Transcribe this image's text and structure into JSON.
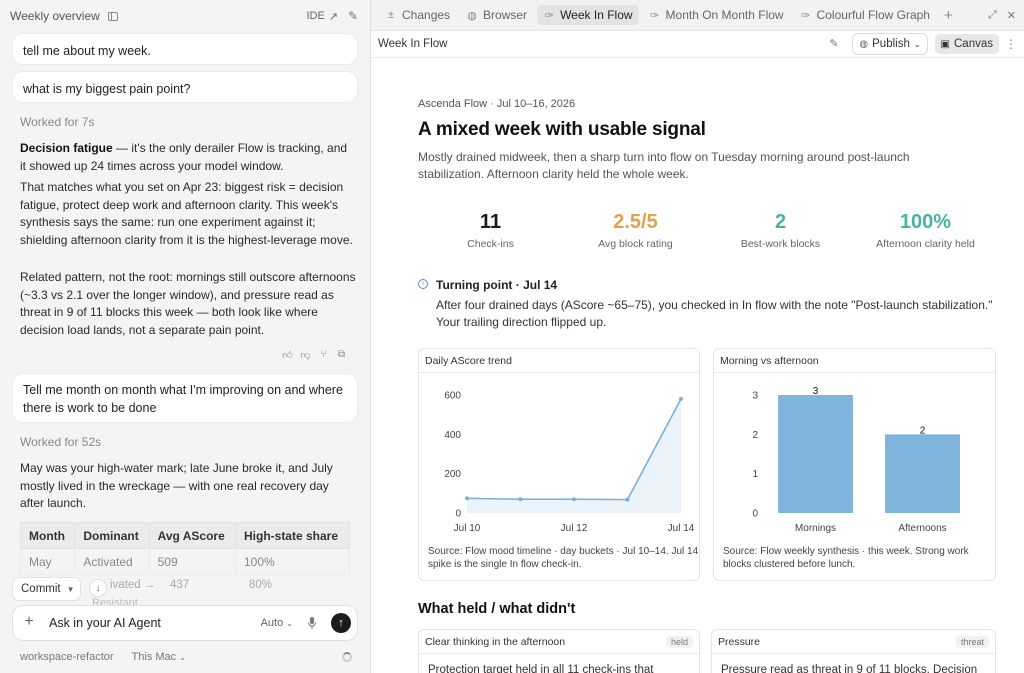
{
  "left": {
    "title": "Weekly overview",
    "ide_label": "IDE",
    "messages": [
      {
        "text": "tell me about my week."
      },
      {
        "text": "what is my biggest pain point?"
      },
      {
        "text": "Tell me month on month what I'm improving on and where there is work to be done"
      }
    ],
    "worked1": "Worked for 7s",
    "answer1": {
      "p1_bold": "Decision fatigue",
      "p1_rest": " — it's the only derailer Flow is tracking, and it showed up 24 times across your model window.",
      "p2": "That matches what you set on Apr 23: biggest risk = decision fatigue, protect deep work and afternoon clarity. This week's synthesis says the same: run one experiment against it; shielding afternoon clarity from it is the highest-leverage move.",
      "p3": "Related pattern, not the root: mornings still outscore afternoons (~3.3 vs 2.1 over the longer window), and pressure read as threat in 9 of 11 blocks this week — both look like where decision load lands, not a separate pain point."
    },
    "worked2": "Worked for 52s",
    "answer2": "May was your high-water mark; late June broke it, and July mostly lived in the wreckage — with one real recovery day after launch.",
    "table": {
      "headers": [
        "Month",
        "Dominant",
        "Avg AScore",
        "High-state share"
      ],
      "rows": [
        [
          "May",
          "Activated",
          "509",
          "100%"
        ],
        [
          "",
          "ivated →",
          "437",
          "80%"
        ]
      ]
    },
    "ghost_resist": "Resistant",
    "commit_label": "Commit",
    "composer": {
      "value": "Ask in your AI Agent",
      "mode": "Auto"
    },
    "footer": {
      "branch": "workspace-refactor",
      "machine": "This Mac"
    }
  },
  "tabs": [
    {
      "label": "Changes",
      "icon": "plus-minus-icon",
      "active": false
    },
    {
      "label": "Browser",
      "icon": "globe-icon",
      "active": false
    },
    {
      "label": "Week In Flow",
      "icon": "flow-icon",
      "active": true
    },
    {
      "label": "Month On Month Flow",
      "icon": "flow-icon",
      "active": false
    },
    {
      "label": "Colourful Flow Graph",
      "icon": "flow-icon",
      "active": false
    }
  ],
  "toolbar": {
    "title": "Week In Flow",
    "publish": "Publish",
    "canvas": "Canvas"
  },
  "doc": {
    "eyebrow": "Ascenda Flow · Jul 10–16, 2026",
    "title": "A mixed week with usable signal",
    "subtitle": "Mostly drained midweek, then a sharp turn into flow on Tuesday morning around post-launch stabilization. Afternoon clarity held the whole week.",
    "stats": [
      {
        "value": "11",
        "label": "Check-ins",
        "color": "#1a1a1a"
      },
      {
        "value": "2.5/5",
        "label": "Avg block rating",
        "color": "#e0a24a"
      },
      {
        "value": "2",
        "label": "Best-work blocks",
        "color": "#4ab3a0"
      },
      {
        "value": "100%",
        "label": "Afternoon clarity held",
        "color": "#4ab3a0"
      }
    ],
    "turning": {
      "title": "Turning point · Jul 14",
      "body": "After four drained days (AScore ~65–75), you checked in In flow with the note \"Post-launch stabilization.\" Your trailing direction flipped up."
    },
    "chart1_title": "Daily AScore trend",
    "chart1_source": "Source: Flow mood timeline · day buckets · Jul 10–14. Jul 14 spike is the single In flow check-in.",
    "chart2_title": "Morning vs afternoon",
    "chart2_source": "Source: Flow weekly synthesis · this week. Strong work blocks clustered before lunch.",
    "section2": "What held / what didn't",
    "held_card": {
      "title": "Clear thinking in the afternoon",
      "tag": "held",
      "body": "Protection target held in all 11 check-ins that"
    },
    "threat_card": {
      "title": "Pressure",
      "tag": "threat",
      "body": "Pressure read as threat in 9 of 11 blocks. Decision"
    }
  },
  "chart_data": [
    {
      "type": "line",
      "title": "Daily AScore trend",
      "x": [
        "Jul 10",
        "Jul 11",
        "Jul 12",
        "Jul 13",
        "Jul 14"
      ],
      "x_tick_labels": [
        "Jul 10",
        "Jul 12",
        "Jul 14"
      ],
      "values": [
        75,
        70,
        70,
        68,
        580
      ],
      "ylim": [
        0,
        600
      ],
      "yticks": [
        0,
        200,
        400,
        600
      ],
      "color": "#7fb0da",
      "fill": "#eaf2fa"
    },
    {
      "type": "bar",
      "title": "Morning vs afternoon",
      "categories": [
        "Mornings",
        "Afternoons"
      ],
      "values": [
        3,
        2
      ],
      "ylim": [
        0,
        3
      ],
      "yticks": [
        0,
        1,
        2,
        3
      ],
      "color": "#7fb4dc"
    }
  ]
}
